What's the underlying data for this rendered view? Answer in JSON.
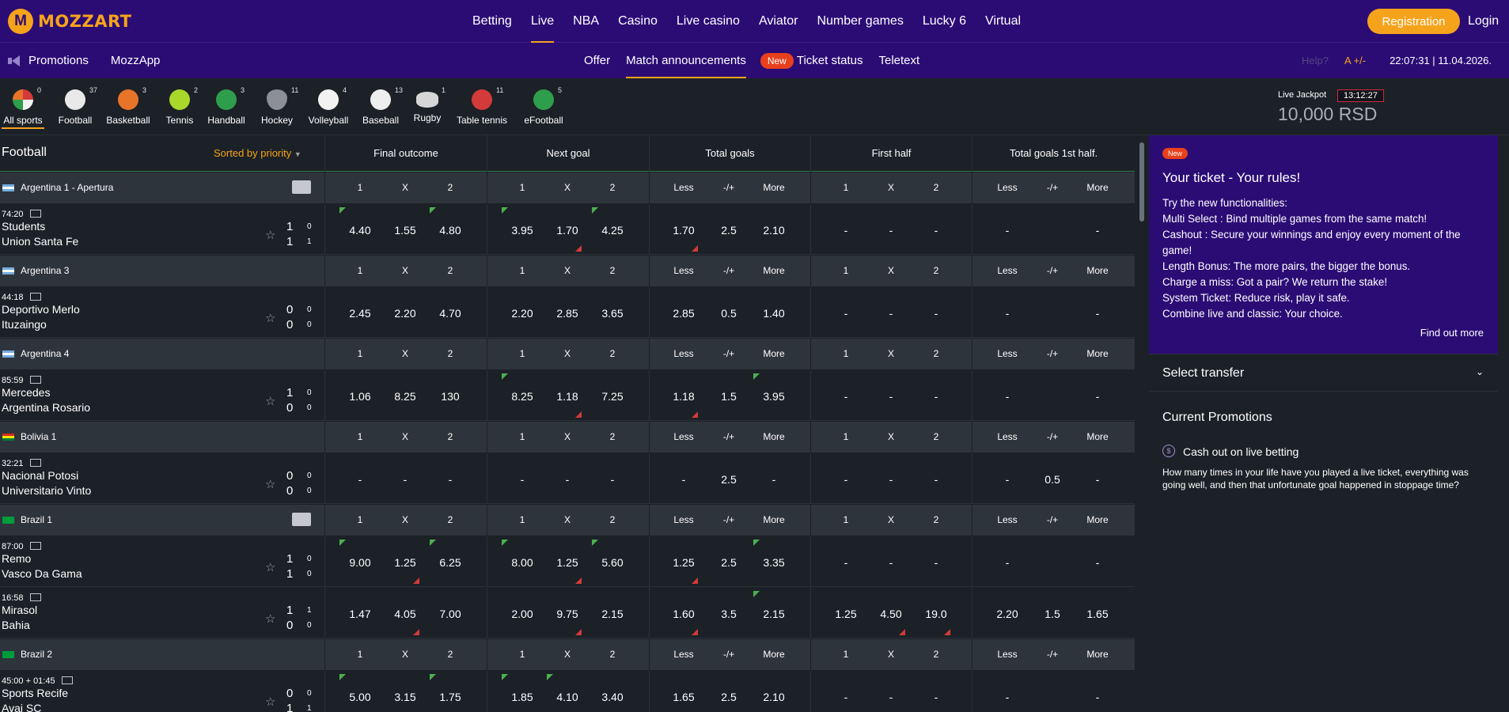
{
  "brand": {
    "logo_text": "MOZZART",
    "logo_mark": "M"
  },
  "nav": {
    "main": [
      "Betting",
      "Live",
      "NBA",
      "Casino",
      "Live casino",
      "Aviator",
      "Number games",
      "Lucky 6",
      "Virtual"
    ],
    "active": "Live",
    "register": "Registration",
    "login": "Login"
  },
  "subnav": {
    "left": [
      "Promotions",
      "MozzApp"
    ],
    "center": [
      "Offer",
      "Match announcements",
      "Ticket status",
      "Teletext"
    ],
    "new_badge": "New",
    "active": "Match announcements",
    "help": "Help?",
    "font_size": "A +/-",
    "datetime": "22:07:31 | 11.04.2026."
  },
  "sports": [
    {
      "name": "All sports",
      "count": "0",
      "icon": "all-sports-icon"
    },
    {
      "name": "Football",
      "count": "37",
      "icon": "football-icon"
    },
    {
      "name": "Basketball",
      "count": "3",
      "icon": "basketball-icon"
    },
    {
      "name": "Tennis",
      "count": "2",
      "icon": "tennis-icon"
    },
    {
      "name": "Handball",
      "count": "3",
      "icon": "handball-icon"
    },
    {
      "name": "Hockey",
      "count": "11",
      "icon": "hockey-icon"
    },
    {
      "name": "Volleyball",
      "count": "4",
      "icon": "volleyball-icon"
    },
    {
      "name": "Baseball",
      "count": "13",
      "icon": "baseball-icon"
    },
    {
      "name": "Rugby",
      "count": "1",
      "icon": "rugby-icon"
    },
    {
      "name": "Table tennis",
      "count": "11",
      "icon": "table-tennis-icon"
    },
    {
      "name": "eFootball",
      "count": "5",
      "icon": "efootball-icon"
    }
  ],
  "jackpot": {
    "label": "Live Jackpot",
    "timer": "13:12:27",
    "amount": "10,000 RSD"
  },
  "table": {
    "title": "Football",
    "sort": "Sorted by priority",
    "markets": [
      "Final outcome",
      "Next goal",
      "Total goals",
      "First half",
      "Total goals 1st half."
    ],
    "col_labels": [
      "1",
      "X",
      "2",
      "1",
      "X",
      "2",
      "Less",
      "-/+",
      "More",
      "1",
      "X",
      "2",
      "Less",
      "-/+",
      "More"
    ],
    "leagues": [
      {
        "name": "Argentina 1 - Apertura",
        "flag": "ar",
        "stats": true,
        "matches": [
          {
            "time": "74:20",
            "home": "Students",
            "away": "Union Santa Fe",
            "score_home": "1",
            "score_away": "1",
            "ht_home": "0",
            "ht_away": "1",
            "odds": [
              "4.40",
              "1.55",
              "4.80",
              "3.95",
              "1.70",
              "4.25",
              "1.70",
              "2.5",
              "2.10",
              "-",
              "-",
              "-",
              "-",
              "",
              "-"
            ],
            "up": [
              0,
              2,
              3,
              5
            ],
            "down": [
              4,
              6
            ]
          }
        ]
      },
      {
        "name": "Argentina 3",
        "flag": "ar",
        "stats": false,
        "matches": [
          {
            "time": "44:18",
            "home": "Deportivo Merlo",
            "away": "Ituzaingo",
            "score_home": "0",
            "score_away": "0",
            "ht_home": "0",
            "ht_away": "0",
            "odds": [
              "2.45",
              "2.20",
              "4.70",
              "2.20",
              "2.85",
              "3.65",
              "2.85",
              "0.5",
              "1.40",
              "-",
              "-",
              "-",
              "-",
              "",
              "-"
            ],
            "up": [],
            "down": []
          }
        ]
      },
      {
        "name": "Argentina 4",
        "flag": "ar",
        "stats": false,
        "matches": [
          {
            "time": "85:59",
            "home": "Mercedes",
            "away": "Argentina Rosario",
            "score_home": "1",
            "score_away": "0",
            "ht_home": "0",
            "ht_away": "0",
            "odds": [
              "1.06",
              "8.25",
              "130",
              "8.25",
              "1.18",
              "7.25",
              "1.18",
              "1.5",
              "3.95",
              "-",
              "-",
              "-",
              "-",
              "",
              "-"
            ],
            "up": [
              3,
              8
            ],
            "down": [
              4,
              6
            ]
          }
        ]
      },
      {
        "name": "Bolivia 1",
        "flag": "bo",
        "stats": false,
        "matches": [
          {
            "time": "32:21",
            "home": "Nacional Potosi",
            "away": "Universitario Vinto",
            "score_home": "0",
            "score_away": "0",
            "ht_home": "0",
            "ht_away": "0",
            "odds": [
              "-",
              "-",
              "-",
              "-",
              "-",
              "-",
              "-",
              "2.5",
              "-",
              "-",
              "-",
              "-",
              "-",
              "0.5",
              "-"
            ],
            "up": [],
            "down": []
          }
        ]
      },
      {
        "name": "Brazil 1",
        "flag": "br",
        "stats": true,
        "matches": [
          {
            "time": "87:00",
            "home": "Remo",
            "away": "Vasco Da Gama",
            "score_home": "1",
            "score_away": "1",
            "ht_home": "0",
            "ht_away": "0",
            "odds": [
              "9.00",
              "1.25",
              "6.25",
              "8.00",
              "1.25",
              "5.60",
              "1.25",
              "2.5",
              "3.35",
              "-",
              "-",
              "-",
              "-",
              "",
              "-"
            ],
            "up": [
              0,
              2,
              3,
              5,
              8
            ],
            "down": [
              1,
              4,
              6
            ]
          },
          {
            "time": "16:58",
            "home": "Mirasol",
            "away": "Bahia",
            "score_home": "1",
            "score_away": "0",
            "ht_home": "1",
            "ht_away": "0",
            "odds": [
              "1.47",
              "4.05",
              "7.00",
              "2.00",
              "9.75",
              "2.15",
              "1.60",
              "3.5",
              "2.15",
              "1.25",
              "4.50",
              "19.0",
              "2.20",
              "1.5",
              "1.65"
            ],
            "up": [
              8
            ],
            "down": [
              1,
              4,
              6,
              10,
              11
            ]
          }
        ]
      },
      {
        "name": "Brazil 2",
        "flag": "br",
        "stats": false,
        "matches": [
          {
            "time": "45:00 + 01:45",
            "home": "Sports Recife",
            "away": "Avai SC",
            "score_home": "0",
            "score_away": "1",
            "ht_home": "0",
            "ht_away": "1",
            "odds": [
              "5.00",
              "3.15",
              "1.75",
              "1.85",
              "4.10",
              "3.40",
              "1.65",
              "2.5",
              "2.10",
              "-",
              "-",
              "-",
              "-",
              "",
              "-"
            ],
            "up": [
              0,
              2,
              3,
              4
            ],
            "down": [
              1,
              5
            ]
          }
        ]
      }
    ]
  },
  "promo": {
    "badge": "New",
    "title": "Your ticket - Your rules!",
    "lines": [
      "Try the new functionalities:",
      "Multi Select : Bind multiple games from the same match!",
      "Cashout : Secure your winnings and enjoy every moment of the game!",
      "Length Bonus: The more pairs, the bigger the bonus.",
      "Charge a miss: Got a pair? We return the stake!",
      "System Ticket: Reduce risk, play it safe.",
      "Combine live and classic: Your choice."
    ],
    "more": "Find out more"
  },
  "transfer": {
    "title": "Select transfer"
  },
  "current_promotions": {
    "title": "Current Promotions",
    "item_title": "Cash out on live betting",
    "item_text": "How many times in your life have you played a live ticket, everything was going well, and then that unfortunate goal happened in stoppage time?"
  },
  "colors": {
    "brand_purple": "#2b0c75",
    "accent": "#f6a31c",
    "new_badge": "#e8401c",
    "odds_up": "#4caf50",
    "odds_down": "#d33a3a"
  }
}
